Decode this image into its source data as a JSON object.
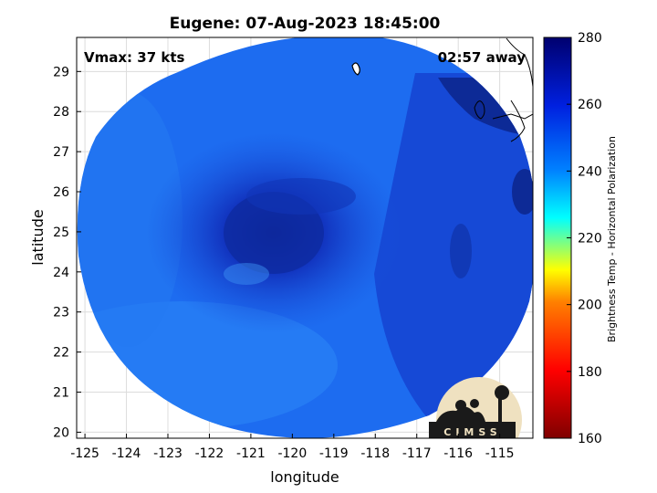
{
  "title": "Eugene: 07-Aug-2023 18:45:00",
  "vmax_label": "Vmax: 37 kts",
  "time_away_label": "02:57 away",
  "xlabel": "longitude",
  "ylabel": "latitude",
  "x_ticks": [
    "-125",
    "-124",
    "-123",
    "-122",
    "-121",
    "-120",
    "-119",
    "-118",
    "-117",
    "-116",
    "-115"
  ],
  "y_ticks": [
    "20",
    "21",
    "22",
    "23",
    "24",
    "25",
    "26",
    "27",
    "28",
    "29"
  ],
  "colorbar": {
    "label": "Brightness Temp - Horizontal Polarization",
    "ticks": [
      "160",
      "180",
      "200",
      "220",
      "240",
      "260",
      "280"
    ],
    "min": 160,
    "max": 280,
    "colors": [
      "#7f0000",
      "#ff0000",
      "#ffff00",
      "#00ffff",
      "#0080ff",
      "#0000bf",
      "#00006f"
    ]
  },
  "logo_text": "CIMSS",
  "map": {
    "xlim": [
      -125.2,
      -114.2
    ],
    "ylim": [
      19.85,
      29.85
    ],
    "grid": true,
    "storm_center": {
      "lon": -120.5,
      "lat": 25.2
    }
  }
}
